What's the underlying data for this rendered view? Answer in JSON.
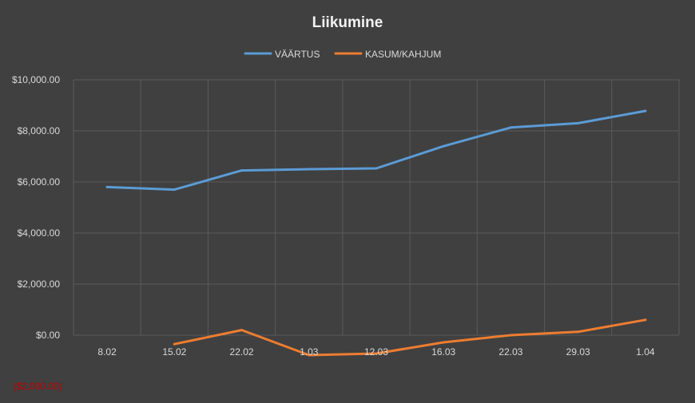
{
  "chart_data": {
    "type": "line",
    "title": "Liikumine",
    "xlabel": "",
    "ylabel": "",
    "categories": [
      "8.02",
      "15.02",
      "22.02",
      "1.03",
      "12.03",
      "16.03",
      "22.03",
      "29.03",
      "1.04"
    ],
    "series": [
      {
        "name": "VÄÄRTUS",
        "color": "#5b9bd5",
        "values": [
          5800,
          5700,
          6450,
          6500,
          6530,
          7400,
          8130,
          8300,
          8780
        ]
      },
      {
        "name": "KASUM/KAHJUM",
        "color": "#ed7d31",
        "values": [
          null,
          -350,
          200,
          -780,
          -720,
          -280,
          0,
          130,
          600
        ]
      }
    ],
    "ylim": [
      -2000,
      10000
    ],
    "yticks": [
      {
        "value": 10000,
        "label": "$10,000.00"
      },
      {
        "value": 8000,
        "label": "$8,000.00"
      },
      {
        "value": 6000,
        "label": "$6,000.00"
      },
      {
        "value": 4000,
        "label": "$4,000.00"
      },
      {
        "value": 2000,
        "label": "$2,000.00"
      },
      {
        "value": 0,
        "label": "$0.00"
      },
      {
        "value": -2000,
        "label": "($2,000.00)",
        "color": "#c00000"
      }
    ],
    "grid": true,
    "legend": "top-center"
  }
}
